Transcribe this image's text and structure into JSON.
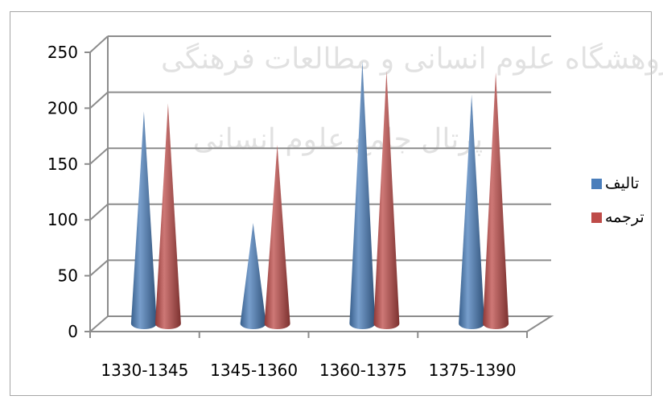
{
  "watermark": {
    "lines": [
      "پژوهشگاه علوم انسانی و مطالعات فرهنگی",
      "پرتال جامع علوم انسانی"
    ]
  },
  "chart_data": {
    "type": "bar",
    "style": "3d-cone",
    "categories": [
      "1330-1345",
      "1345-1360",
      "1360-1375",
      "1375-1390"
    ],
    "series": [
      {
        "name": "تالیف",
        "color": "#4a7ebb",
        "values": [
          190,
          90,
          235,
          205
        ]
      },
      {
        "name": "ترجمه",
        "color": "#be4b48",
        "values": [
          197,
          160,
          226,
          225
        ]
      }
    ],
    "ylim": [
      0,
      250
    ],
    "yticks": [
      0,
      50,
      100,
      150,
      200,
      250
    ],
    "grid": true,
    "legend": "right",
    "title": "",
    "xlabel": "",
    "ylabel": ""
  }
}
